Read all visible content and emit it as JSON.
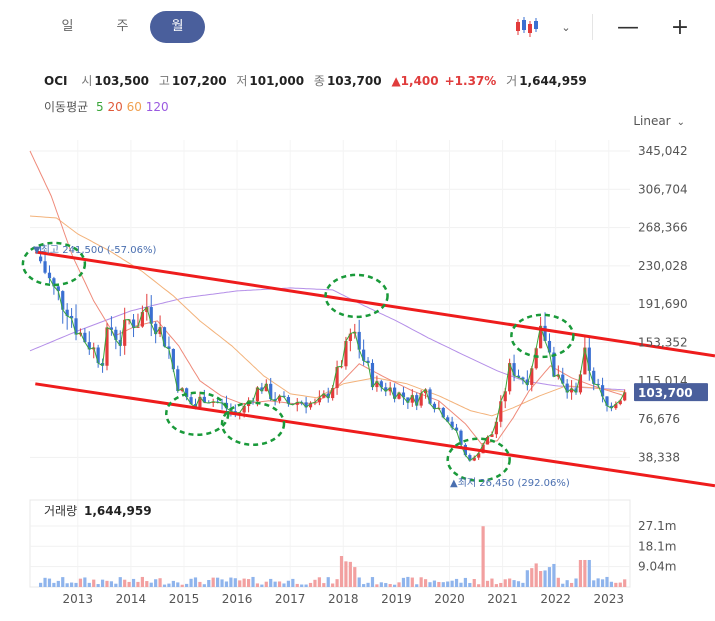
{
  "tabs": {
    "day": "일",
    "week": "주",
    "month": "월",
    "active": "month"
  },
  "toolbar": {
    "chart_type_icon": "candlestick-icon",
    "dropdown_icon": "chevron-down-icon",
    "zoom_out": "—",
    "zoom_in": "+"
  },
  "info": {
    "name": "OCI",
    "open_label": "시",
    "open": "103,500",
    "high_label": "고",
    "high": "107,200",
    "low_label": "저",
    "low": "101,000",
    "close_label": "종",
    "close": "103,700",
    "change": "▲1,400",
    "change_pct": "+1.37%",
    "volume_label": "거",
    "volume": "1,644,959"
  },
  "moving_avg": {
    "label": "이동평균",
    "periods": [
      {
        "p": "5",
        "color": "#3aa63a"
      },
      {
        "p": "20",
        "color": "#e05a3a"
      },
      {
        "p": "60",
        "color": "#f0a050"
      },
      {
        "p": "120",
        "color": "#9a5ae0"
      }
    ]
  },
  "scale_mode": "Linear",
  "colors": {
    "up": "#e23b3b",
    "down": "#3a6fd1",
    "accent": "#4a5f9c",
    "trend": "#ee1c1c",
    "circle": "#1a9a3a",
    "current_tag": "#4a5f9c",
    "vol_up": "#f2a0a0",
    "vol_down": "#8fb4ec"
  },
  "chart_data": {
    "type": "candlestick",
    "price_ticks": [
      "345,042",
      "306,704",
      "268,366",
      "230,028",
      "191,690",
      "153,352",
      "115,014",
      "76,676",
      "38,338"
    ],
    "price_tick_values": [
      345042,
      306704,
      268366,
      230028,
      191690,
      153352,
      115014,
      76676,
      38338
    ],
    "current_price": "103,700",
    "current_value": 103700,
    "x_labels": [
      "2013",
      "2014",
      "2015",
      "2016",
      "2017",
      "2018",
      "2019",
      "2020",
      "2021",
      "2022",
      "2023"
    ],
    "high_annotation": "▼최고 241,500 (-57.06%)",
    "low_annotation": "▲최저 26,450 (292.06%)",
    "volume_title": "거래량",
    "volume_value": "1,644,959",
    "volume_ticks": [
      "27.1m",
      "18.1m",
      "9.04m"
    ],
    "volume_tick_values": [
      27.1,
      18.1,
      9.04
    ],
    "anchors": [
      [
        2012.3,
        235000
      ],
      [
        2012.55,
        205000
      ],
      [
        2012.8,
        190000
      ],
      [
        2013.0,
        165000
      ],
      [
        2013.25,
        150000
      ],
      [
        2013.45,
        135000
      ],
      [
        2013.6,
        170000
      ],
      [
        2013.8,
        155000
      ],
      [
        2013.95,
        175000
      ],
      [
        2014.15,
        175000
      ],
      [
        2014.3,
        190000
      ],
      [
        2014.5,
        170000
      ],
      [
        2014.7,
        150000
      ],
      [
        2014.85,
        115000
      ],
      [
        2015.0,
        100000
      ],
      [
        2015.2,
        88000
      ],
      [
        2015.35,
        100000
      ],
      [
        2015.55,
        95000
      ],
      [
        2015.75,
        90000
      ],
      [
        2015.95,
        82000
      ],
      [
        2016.1,
        85000
      ],
      [
        2016.25,
        98000
      ],
      [
        2016.45,
        110000
      ],
      [
        2016.7,
        98000
      ],
      [
        2016.95,
        92000
      ],
      [
        2017.2,
        95000
      ],
      [
        2017.5,
        90000
      ],
      [
        2017.75,
        105000
      ],
      [
        2017.95,
        130000
      ],
      [
        2018.15,
        175000
      ],
      [
        2018.35,
        140000
      ],
      [
        2018.6,
        110000
      ],
      [
        2018.85,
        108000
      ],
      [
        2019.1,
        100000
      ],
      [
        2019.35,
        95000
      ],
      [
        2019.55,
        105000
      ],
      [
        2019.75,
        90000
      ],
      [
        2019.95,
        80000
      ],
      [
        2020.15,
        60000
      ],
      [
        2020.3,
        40000
      ],
      [
        2020.45,
        35000
      ],
      [
        2020.6,
        50000
      ],
      [
        2020.8,
        62000
      ],
      [
        2020.95,
        85000
      ],
      [
        2021.15,
        130000
      ],
      [
        2021.35,
        118000
      ],
      [
        2021.55,
        120000
      ],
      [
        2021.75,
        170000
      ],
      [
        2021.95,
        128000
      ],
      [
        2022.15,
        108000
      ],
      [
        2022.35,
        102000
      ],
      [
        2022.55,
        140000
      ],
      [
        2022.75,
        112000
      ],
      [
        2022.95,
        88000
      ],
      [
        2023.1,
        95000
      ],
      [
        2023.3,
        103700
      ]
    ],
    "ma120_anchors": [
      [
        2012.1,
        145000
      ],
      [
        2013.0,
        165000
      ],
      [
        2014.0,
        185000
      ],
      [
        2015.0,
        198000
      ],
      [
        2016.0,
        205000
      ],
      [
        2017.0,
        208000
      ],
      [
        2017.8,
        206000
      ],
      [
        2018.4,
        190000
      ],
      [
        2019.0,
        175000
      ],
      [
        2019.6,
        158000
      ],
      [
        2020.3,
        140000
      ],
      [
        2020.9,
        125000
      ],
      [
        2021.4,
        115000
      ],
      [
        2022.0,
        110000
      ],
      [
        2022.6,
        108000
      ],
      [
        2023.3,
        106000
      ]
    ],
    "ma60_anchors": [
      [
        2012.1,
        280000
      ],
      [
        2012.6,
        278000
      ],
      [
        2013.0,
        262000
      ],
      [
        2013.6,
        245000
      ],
      [
        2014.2,
        225000
      ],
      [
        2014.8,
        200000
      ],
      [
        2015.3,
        175000
      ],
      [
        2015.9,
        150000
      ],
      [
        2016.5,
        120000
      ],
      [
        2017.0,
        102000
      ],
      [
        2017.5,
        98000
      ],
      [
        2018.0,
        112000
      ],
      [
        2018.6,
        118000
      ],
      [
        2019.2,
        112000
      ],
      [
        2019.8,
        100000
      ],
      [
        2020.4,
        85000
      ],
      [
        2020.8,
        80000
      ],
      [
        2021.2,
        88000
      ],
      [
        2021.7,
        100000
      ],
      [
        2022.2,
        110000
      ],
      [
        2022.7,
        108000
      ],
      [
        2023.3,
        104000
      ]
    ],
    "ma20_anchors": [
      [
        2012.1,
        345000
      ],
      [
        2012.5,
        300000
      ],
      [
        2012.9,
        240000
      ],
      [
        2013.3,
        195000
      ],
      [
        2013.7,
        160000
      ],
      [
        2014.1,
        170000
      ],
      [
        2014.5,
        175000
      ],
      [
        2014.9,
        150000
      ],
      [
        2015.3,
        115000
      ],
      [
        2015.7,
        100000
      ],
      [
        2016.1,
        92000
      ],
      [
        2016.6,
        95000
      ],
      [
        2017.1,
        92000
      ],
      [
        2017.5,
        93000
      ],
      [
        2017.9,
        110000
      ],
      [
        2018.3,
        132000
      ],
      [
        2018.8,
        118000
      ],
      [
        2019.3,
        105000
      ],
      [
        2019.8,
        95000
      ],
      [
        2020.3,
        72000
      ],
      [
        2020.6,
        52000
      ],
      [
        2020.9,
        55000
      ],
      [
        2021.2,
        78000
      ],
      [
        2021.5,
        105000
      ],
      [
        2021.9,
        130000
      ],
      [
        2022.3,
        118000
      ],
      [
        2022.7,
        110000
      ],
      [
        2023.3,
        100000
      ]
    ],
    "trend_upper": [
      [
        2012.2,
        244000
      ],
      [
        2025.0,
        140000
      ]
    ],
    "trend_lower": [
      [
        2012.2,
        112000
      ],
      [
        2025.0,
        10000
      ]
    ],
    "circles": [
      {
        "x": 2012.55,
        "y": 232000
      },
      {
        "x": 2015.25,
        "y": 82000
      },
      {
        "x": 2016.3,
        "y": 72000
      },
      {
        "x": 2018.25,
        "y": 200000
      },
      {
        "x": 2020.55,
        "y": 36000
      },
      {
        "x": 2021.75,
        "y": 160000
      }
    ]
  }
}
